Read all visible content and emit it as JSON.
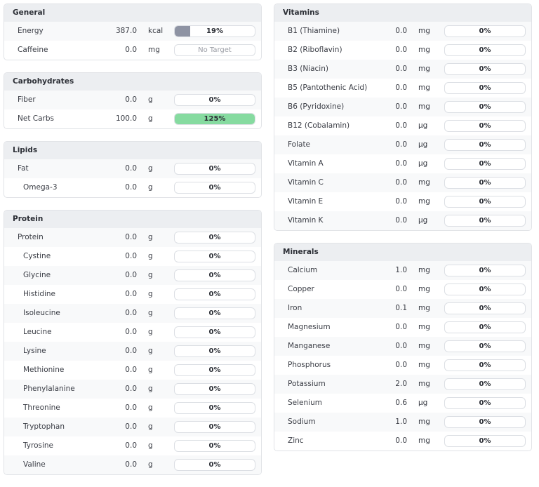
{
  "columns": [
    [
      {
        "title": "General",
        "rows": [
          {
            "name": "Energy",
            "amount": "387.0",
            "unit": "kcal",
            "progress": {
              "value": 19,
              "label": "19%"
            },
            "color": "#8e93a3"
          },
          {
            "name": "Caffeine",
            "amount": "0.0",
            "unit": "mg",
            "progress": {
              "label": "No Target"
            }
          }
        ]
      },
      {
        "title": "Carbohydrates",
        "rows": [
          {
            "name": "Fiber",
            "amount": "0.0",
            "unit": "g",
            "progress": {
              "value": 0,
              "label": "0%"
            }
          },
          {
            "name": "Net Carbs",
            "amount": "100.0",
            "unit": "g",
            "progress": {
              "value": 125,
              "label": "125%"
            },
            "color": "#86dba0"
          }
        ]
      },
      {
        "title": "Lipids",
        "rows": [
          {
            "name": "Fat",
            "amount": "0.0",
            "unit": "g",
            "progress": {
              "value": 0,
              "label": "0%"
            }
          },
          {
            "name": "Omega-3",
            "amount": "0.0",
            "unit": "g",
            "progress": {
              "value": 0,
              "label": "0%"
            },
            "indent": true
          }
        ]
      },
      {
        "title": "Protein",
        "rows": [
          {
            "name": "Protein",
            "amount": "0.0",
            "unit": "g",
            "progress": {
              "value": 0,
              "label": "0%"
            }
          },
          {
            "name": "Cystine",
            "amount": "0.0",
            "unit": "g",
            "progress": {
              "value": 0,
              "label": "0%"
            },
            "indent": true
          },
          {
            "name": "Glycine",
            "amount": "0.0",
            "unit": "g",
            "progress": {
              "value": 0,
              "label": "0%"
            },
            "indent": true
          },
          {
            "name": "Histidine",
            "amount": "0.0",
            "unit": "g",
            "progress": {
              "value": 0,
              "label": "0%"
            },
            "indent": true
          },
          {
            "name": "Isoleucine",
            "amount": "0.0",
            "unit": "g",
            "progress": {
              "value": 0,
              "label": "0%"
            },
            "indent": true
          },
          {
            "name": "Leucine",
            "amount": "0.0",
            "unit": "g",
            "progress": {
              "value": 0,
              "label": "0%"
            },
            "indent": true
          },
          {
            "name": "Lysine",
            "amount": "0.0",
            "unit": "g",
            "progress": {
              "value": 0,
              "label": "0%"
            },
            "indent": true
          },
          {
            "name": "Methionine",
            "amount": "0.0",
            "unit": "g",
            "progress": {
              "value": 0,
              "label": "0%"
            },
            "indent": true
          },
          {
            "name": "Phenylalanine",
            "amount": "0.0",
            "unit": "g",
            "progress": {
              "value": 0,
              "label": "0%"
            },
            "indent": true
          },
          {
            "name": "Threonine",
            "amount": "0.0",
            "unit": "g",
            "progress": {
              "value": 0,
              "label": "0%"
            },
            "indent": true
          },
          {
            "name": "Tryptophan",
            "amount": "0.0",
            "unit": "g",
            "progress": {
              "value": 0,
              "label": "0%"
            },
            "indent": true
          },
          {
            "name": "Tyrosine",
            "amount": "0.0",
            "unit": "g",
            "progress": {
              "value": 0,
              "label": "0%"
            },
            "indent": true
          },
          {
            "name": "Valine",
            "amount": "0.0",
            "unit": "g",
            "progress": {
              "value": 0,
              "label": "0%"
            },
            "indent": true
          }
        ]
      }
    ],
    [
      {
        "title": "Vitamins",
        "rows": [
          {
            "name": "B1 (Thiamine)",
            "amount": "0.0",
            "unit": "mg",
            "progress": {
              "value": 0,
              "label": "0%"
            }
          },
          {
            "name": "B2 (Riboflavin)",
            "amount": "0.0",
            "unit": "mg",
            "progress": {
              "value": 0,
              "label": "0%"
            }
          },
          {
            "name": "B3 (Niacin)",
            "amount": "0.0",
            "unit": "mg",
            "progress": {
              "value": 0,
              "label": "0%"
            }
          },
          {
            "name": "B5 (Pantothenic Acid)",
            "amount": "0.0",
            "unit": "mg",
            "progress": {
              "value": 0,
              "label": "0%"
            }
          },
          {
            "name": "B6 (Pyridoxine)",
            "amount": "0.0",
            "unit": "mg",
            "progress": {
              "value": 0,
              "label": "0%"
            }
          },
          {
            "name": "B12 (Cobalamin)",
            "amount": "0.0",
            "unit": "µg",
            "progress": {
              "value": 0,
              "label": "0%"
            }
          },
          {
            "name": "Folate",
            "amount": "0.0",
            "unit": "µg",
            "progress": {
              "value": 0,
              "label": "0%"
            }
          },
          {
            "name": "Vitamin A",
            "amount": "0.0",
            "unit": "µg",
            "progress": {
              "value": 0,
              "label": "0%"
            }
          },
          {
            "name": "Vitamin C",
            "amount": "0.0",
            "unit": "mg",
            "progress": {
              "value": 0,
              "label": "0%"
            }
          },
          {
            "name": "Vitamin E",
            "amount": "0.0",
            "unit": "mg",
            "progress": {
              "value": 0,
              "label": "0%"
            }
          },
          {
            "name": "Vitamin K",
            "amount": "0.0",
            "unit": "µg",
            "progress": {
              "value": 0,
              "label": "0%"
            }
          }
        ]
      },
      {
        "title": "Minerals",
        "rows": [
          {
            "name": "Calcium",
            "amount": "1.0",
            "unit": "mg",
            "progress": {
              "value": 0,
              "label": "0%"
            }
          },
          {
            "name": "Copper",
            "amount": "0.0",
            "unit": "mg",
            "progress": {
              "value": 0,
              "label": "0%"
            }
          },
          {
            "name": "Iron",
            "amount": "0.1",
            "unit": "mg",
            "progress": {
              "value": 0,
              "label": "0%"
            }
          },
          {
            "name": "Magnesium",
            "amount": "0.0",
            "unit": "mg",
            "progress": {
              "value": 0,
              "label": "0%"
            }
          },
          {
            "name": "Manganese",
            "amount": "0.0",
            "unit": "mg",
            "progress": {
              "value": 0,
              "label": "0%"
            }
          },
          {
            "name": "Phosphorus",
            "amount": "0.0",
            "unit": "mg",
            "progress": {
              "value": 0,
              "label": "0%"
            }
          },
          {
            "name": "Potassium",
            "amount": "2.0",
            "unit": "mg",
            "progress": {
              "value": 0,
              "label": "0%"
            }
          },
          {
            "name": "Selenium",
            "amount": "0.6",
            "unit": "µg",
            "progress": {
              "value": 0,
              "label": "0%"
            }
          },
          {
            "name": "Sodium",
            "amount": "1.0",
            "unit": "mg",
            "progress": {
              "value": 0,
              "label": "0%"
            }
          },
          {
            "name": "Zinc",
            "amount": "0.0",
            "unit": "mg",
            "progress": {
              "value": 0,
              "label": "0%"
            }
          }
        ]
      }
    ]
  ]
}
